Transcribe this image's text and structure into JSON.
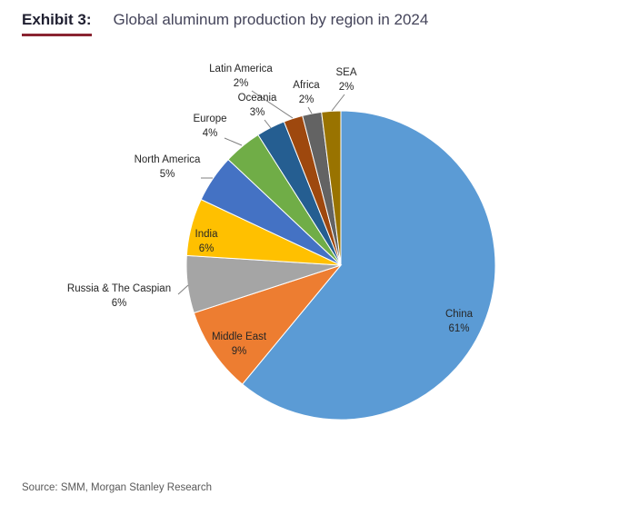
{
  "header": {
    "exhibit_label": "Exhibit 3:",
    "title": "Global aluminum production by region in 2024"
  },
  "source": {
    "text": "Source: SMM, Morgan Stanley Research"
  },
  "accent_underline_color": "#8a2432",
  "chart_data": {
    "type": "pie",
    "title": "Global aluminum production by region in 2024",
    "categories": [
      "China",
      "Middle East",
      "Russia & The Caspian",
      "India",
      "North America",
      "Europe",
      "Oceania",
      "Latin America",
      "Africa",
      "SEA"
    ],
    "values": [
      61,
      9,
      6,
      6,
      5,
      4,
      3,
      2,
      2,
      2
    ],
    "unit": "%",
    "colors": [
      "#5B9BD5",
      "#ED7D31",
      "#A5A5A5",
      "#FFC000",
      "#4472C4",
      "#70AD47",
      "#255E91",
      "#9E480E",
      "#636363",
      "#997300"
    ],
    "start_angle_deg": 0,
    "direction": "clockwise",
    "legend_position": "none",
    "label_style": "category name + percent, outside with leader lines for small slices"
  }
}
